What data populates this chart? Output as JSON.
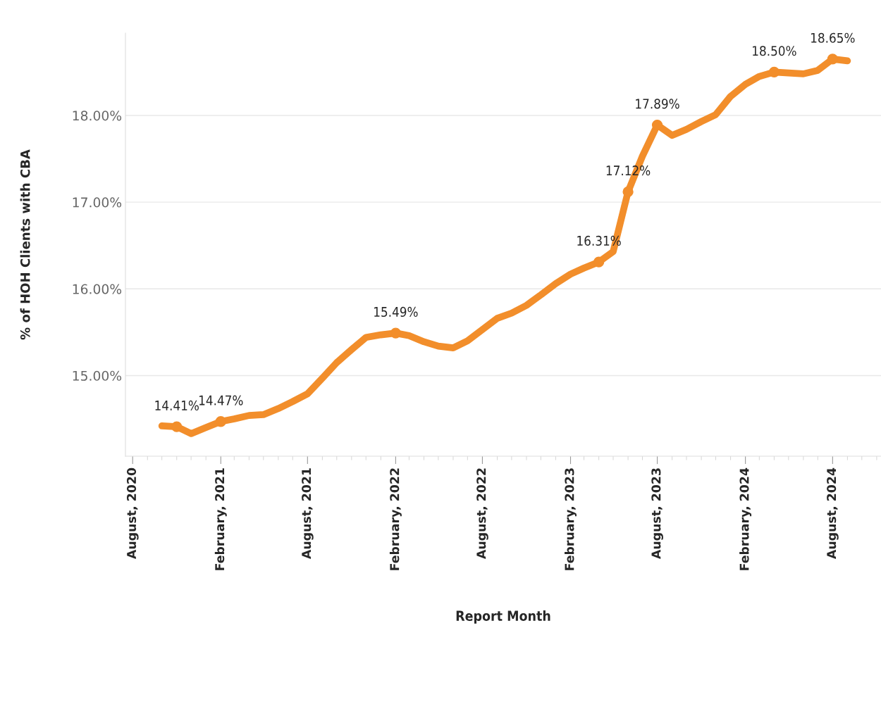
{
  "chart_data": {
    "type": "line",
    "xlabel": "Report Month",
    "ylabel": "% of HOH Clients with CBA",
    "x": [
      "2020-10",
      "2020-11",
      "2020-12",
      "2021-01",
      "2021-02",
      "2021-03",
      "2021-04",
      "2021-05",
      "2021-06",
      "2021-07",
      "2021-08",
      "2021-09",
      "2021-10",
      "2021-11",
      "2021-12",
      "2022-01",
      "2022-02",
      "2022-03",
      "2022-04",
      "2022-05",
      "2022-06",
      "2022-07",
      "2022-08",
      "2022-09",
      "2022-10",
      "2022-11",
      "2022-12",
      "2023-01",
      "2023-02",
      "2023-03",
      "2023-04",
      "2023-05",
      "2023-06",
      "2023-07",
      "2023-08",
      "2023-09",
      "2023-10",
      "2023-11",
      "2023-12",
      "2024-01",
      "2024-02",
      "2024-03",
      "2024-04",
      "2024-05",
      "2024-06",
      "2024-07",
      "2024-08",
      "2024-09"
    ],
    "series": [
      {
        "color": "#f28e2b",
        "values": [
          14.42,
          14.41,
          14.33,
          14.4,
          14.47,
          14.5,
          14.54,
          14.55,
          14.62,
          14.7,
          14.79,
          14.97,
          15.15,
          15.3,
          15.44,
          15.47,
          15.49,
          15.46,
          15.39,
          15.34,
          15.32,
          15.4,
          15.53,
          15.66,
          15.72,
          15.81,
          15.93,
          16.06,
          16.17,
          16.24,
          16.31,
          16.43,
          17.12,
          17.53,
          17.89,
          17.77,
          17.84,
          17.93,
          18.01,
          18.22,
          18.36,
          18.45,
          18.5,
          18.49,
          18.48,
          18.52,
          18.65,
          18.63
        ],
        "value_labels": [
          null,
          "14.41%",
          null,
          null,
          "14.47%",
          null,
          null,
          null,
          null,
          null,
          null,
          null,
          null,
          null,
          null,
          null,
          "15.49%",
          null,
          null,
          null,
          null,
          null,
          null,
          null,
          null,
          null,
          null,
          null,
          null,
          null,
          "16.31%",
          null,
          "17.12%",
          null,
          "17.89%",
          null,
          null,
          null,
          null,
          null,
          null,
          null,
          "18.50%",
          null,
          null,
          null,
          "18.65%",
          null
        ]
      }
    ],
    "xlim": [
      "2020-07-17",
      "2024-11-10"
    ],
    "xticks": [
      {
        "value": "2020-08",
        "label": "August, 2020"
      },
      {
        "value": "2021-02",
        "label": "February, 2021"
      },
      {
        "value": "2021-08",
        "label": "August, 2021"
      },
      {
        "value": "2022-02",
        "label": "February, 2022"
      },
      {
        "value": "2022-08",
        "label": "August, 2022"
      },
      {
        "value": "2023-02",
        "label": "February, 2023"
      },
      {
        "value": "2023-08",
        "label": "August, 2023"
      },
      {
        "value": "2024-02",
        "label": "February, 2024"
      },
      {
        "value": "2024-08",
        "label": "August, 2024"
      }
    ],
    "ylim": [
      14.07,
      18.95
    ],
    "yticks": [
      {
        "value": 15,
        "label": "15.00%"
      },
      {
        "value": 16,
        "label": "16.00%"
      },
      {
        "value": 17,
        "label": "17.00%"
      },
      {
        "value": 18,
        "label": "18.00%"
      }
    ],
    "grid": "y",
    "legend": false,
    "line_style": "solid"
  }
}
